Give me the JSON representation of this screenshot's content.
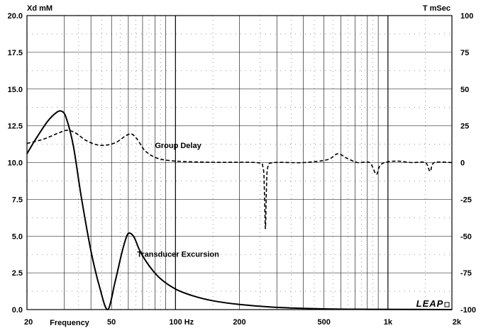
{
  "chart_data": {
    "type": "line",
    "x_scale": "log",
    "xlim": [
      20,
      2000
    ],
    "x_ticks": [
      20,
      50,
      100,
      200,
      500,
      1000,
      2000
    ],
    "x_tick_labels": [
      "20",
      "50",
      "100 Hz",
      "200",
      "500",
      "1k",
      "2k"
    ],
    "x_label": "Frequency",
    "left_axis": {
      "label": "Xd mM",
      "ylim": [
        0,
        20
      ],
      "ticks": [
        0,
        2.5,
        5,
        7.5,
        10,
        12.5,
        15,
        17.5,
        20
      ],
      "tick_labels": [
        "0.0",
        "2.5",
        "5.0",
        "7.5",
        "10.0",
        "12.5",
        "15.0",
        "17.5",
        "20.0"
      ]
    },
    "right_axis": {
      "label": "T mSec",
      "ylim": [
        -100,
        100
      ],
      "ticks": [
        -100,
        -75,
        -50,
        -25,
        0,
        25,
        50,
        75,
        100
      ],
      "tick_labels": [
        "-100",
        "-75",
        "-50",
        "-25",
        "0",
        "25",
        "50",
        "75",
        "100"
      ]
    },
    "grid": true,
    "series": [
      {
        "name": "Transducer Excursion",
        "axis": "left",
        "style": "solid",
        "points": [
          [
            20,
            10.6
          ],
          [
            22,
            11.6
          ],
          [
            25,
            12.8
          ],
          [
            27.5,
            13.4
          ],
          [
            29,
            13.5
          ],
          [
            30.5,
            13.1
          ],
          [
            33,
            11.2
          ],
          [
            36,
            7.7
          ],
          [
            40,
            4.0
          ],
          [
            44,
            1.5
          ],
          [
            48,
            0.0
          ],
          [
            52,
            1.9
          ],
          [
            56,
            3.9
          ],
          [
            59,
            5.0
          ],
          [
            61,
            5.2
          ],
          [
            64,
            4.9
          ],
          [
            68,
            4.0
          ],
          [
            75,
            3.0
          ],
          [
            85,
            2.1
          ],
          [
            100,
            1.4
          ],
          [
            120,
            0.95
          ],
          [
            150,
            0.6
          ],
          [
            200,
            0.35
          ],
          [
            300,
            0.15
          ],
          [
            500,
            0.05
          ],
          [
            800,
            0.02
          ],
          [
            2000,
            0.0
          ]
        ]
      },
      {
        "name": "Group Delay",
        "axis": "right",
        "style": "dashed",
        "points": [
          [
            20,
            13
          ],
          [
            24,
            16
          ],
          [
            28,
            20
          ],
          [
            31,
            22
          ],
          [
            34,
            20
          ],
          [
            38,
            15
          ],
          [
            43,
            12
          ],
          [
            48,
            12
          ],
          [
            53,
            14
          ],
          [
            58,
            18
          ],
          [
            62,
            19.5
          ],
          [
            66,
            16
          ],
          [
            72,
            8
          ],
          [
            82,
            3
          ],
          [
            100,
            1
          ],
          [
            150,
            0.2
          ],
          [
            240,
            0
          ],
          [
            258,
            -3
          ],
          [
            262,
            -18
          ],
          [
            265,
            -45
          ],
          [
            268,
            -18
          ],
          [
            272,
            -3
          ],
          [
            290,
            0
          ],
          [
            400,
            0
          ],
          [
            520,
            2
          ],
          [
            580,
            6
          ],
          [
            640,
            3
          ],
          [
            720,
            0
          ],
          [
            820,
            0
          ],
          [
            880,
            -8
          ],
          [
            910,
            -3
          ],
          [
            960,
            0
          ],
          [
            1100,
            1
          ],
          [
            1300,
            0
          ],
          [
            1500,
            0
          ],
          [
            1580,
            -6
          ],
          [
            1650,
            0
          ],
          [
            2000,
            0
          ]
        ]
      }
    ],
    "annotations": [
      {
        "text": "Group Delay",
        "x": 80,
        "y_left": 11.0
      },
      {
        "text": "Transducer Excursion",
        "x": 66,
        "y_left": 3.6
      }
    ],
    "logo": "LEAP"
  }
}
